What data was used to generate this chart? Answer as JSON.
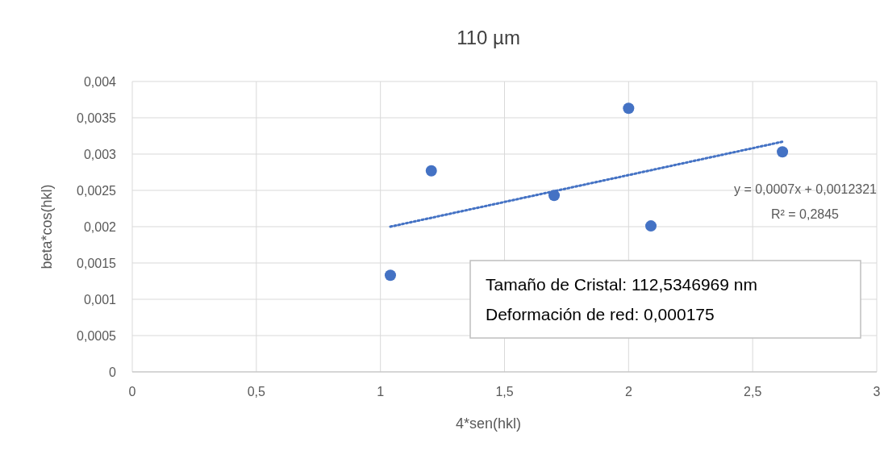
{
  "chart_data": {
    "type": "scatter",
    "title": "110 µm",
    "xlabel": "4*sen(hkl)",
    "ylabel": "beta*cos(hkl)",
    "xlim": [
      0,
      3
    ],
    "xticks": [
      0,
      {
        "value": 0.5,
        "label": "0,5"
      },
      1,
      {
        "value": 1.5,
        "label": "1,5"
      },
      2,
      {
        "value": 2.5,
        "label": "2,5"
      },
      3
    ],
    "ylim": [
      0,
      0.004
    ],
    "yticks": [
      0,
      {
        "value": 0.0005,
        "label": "0,0005"
      },
      {
        "value": 0.001,
        "label": "0,001"
      },
      {
        "value": 0.0015,
        "label": "0,0015"
      },
      {
        "value": 0.002,
        "label": "0,002"
      },
      {
        "value": 0.0025,
        "label": "0,0025"
      },
      {
        "value": 0.003,
        "label": "0,003"
      },
      {
        "value": 0.0035,
        "label": "0,0035"
      },
      {
        "value": 0.004,
        "label": "0,004"
      }
    ],
    "grid": true,
    "marker": "circle",
    "series": [
      {
        "color": "#4472c4",
        "x": [
          1.04,
          1.205,
          1.7,
          2.0,
          2.09,
          2.62
        ],
        "values": [
          0.00133,
          0.00277,
          0.00243,
          0.00363,
          0.00201,
          0.00303
        ]
      },
      {
        "type": "line",
        "color": "#4472c4",
        "line_style": "dotted",
        "marker": "none",
        "x": [
          1.04,
          2.62
        ],
        "values": [
          0.002,
          0.00317
        ]
      }
    ],
    "annotations": [
      "y = 0,0007x + 0,0012321",
      "R² = 0,2845",
      "Tamaño de Cristal: 112,5346969 nm",
      "Deformación de red: 0,000175"
    ]
  }
}
